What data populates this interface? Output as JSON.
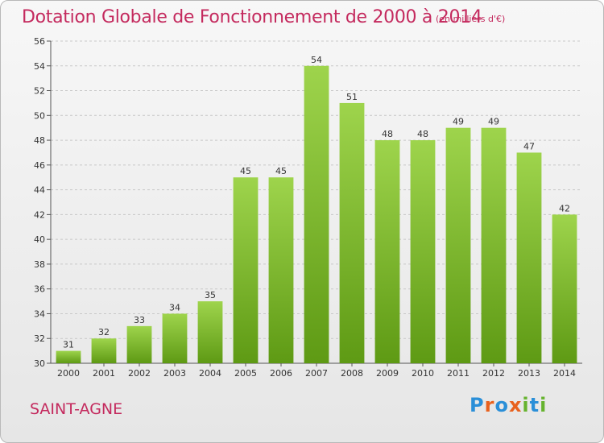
{
  "title": "Dotation Globale de Fonctionnement de 2000 à 2014",
  "unit_note": "(en milliers d'€)",
  "commune": "SAINT-AGNE",
  "logo": {
    "text": "Proxiti",
    "letters": [
      "P",
      "r",
      "o",
      "x",
      "i",
      "t",
      "i"
    ],
    "letter_colors": [
      "#2a8fd8",
      "#e8611d",
      "#2a8fd8",
      "#e8611d",
      "#66b32e",
      "#2a8fd8",
      "#66b32e"
    ]
  },
  "colors": {
    "title": "#c42a5e",
    "bar_top": "#9ed44c",
    "bar_bottom": "#5e9a14"
  },
  "chart_data": {
    "type": "bar",
    "title": "Dotation Globale de Fonctionnement de 2000 à 2014",
    "xlabel": "",
    "ylabel": "",
    "categories": [
      "2000",
      "2001",
      "2002",
      "2003",
      "2004",
      "2005",
      "2006",
      "2007",
      "2008",
      "2009",
      "2010",
      "2011",
      "2012",
      "2013",
      "2014"
    ],
    "values": [
      31,
      32,
      33,
      34,
      35,
      45,
      45,
      54,
      51,
      48,
      48,
      49,
      49,
      47,
      42
    ],
    "ylim": [
      30,
      56
    ],
    "yticks": [
      30,
      32,
      34,
      36,
      38,
      40,
      42,
      44,
      46,
      48,
      50,
      52,
      54,
      56
    ],
    "grid": "horizontal dashed",
    "legend": "none"
  }
}
